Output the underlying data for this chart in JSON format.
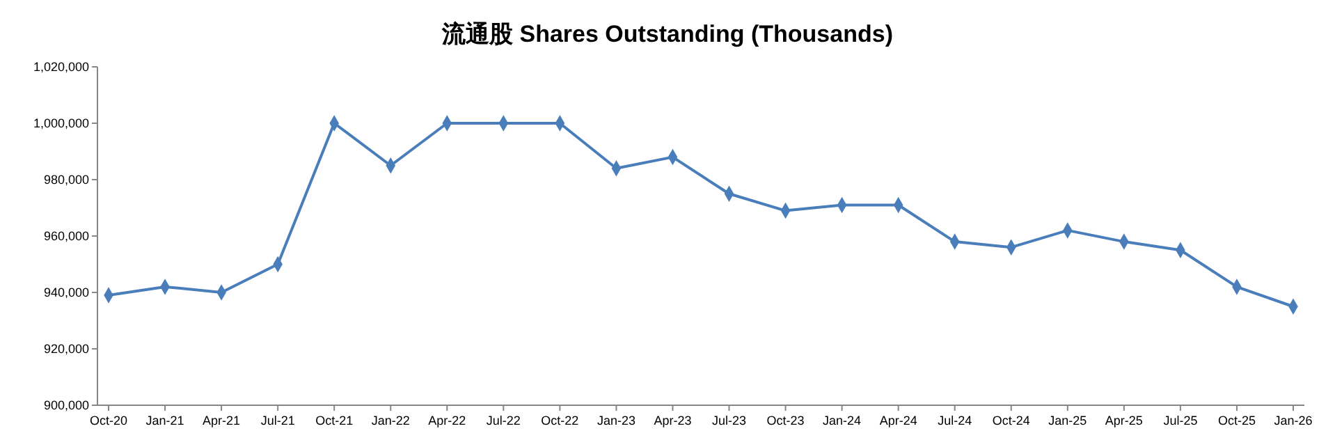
{
  "chart_data": {
    "type": "line",
    "title": "流通股 Shares Outstanding (Thousands)",
    "categories": [
      "Oct-20",
      "Jan-21",
      "Apr-21",
      "Jul-21",
      "Oct-21",
      "Jan-22",
      "Apr-22",
      "Jul-22",
      "Oct-22",
      "Jan-23",
      "Apr-23",
      "Jul-23",
      "Oct-23",
      "Jan-24",
      "Apr-24",
      "Jul-24",
      "Oct-24",
      "Jan-25",
      "Apr-25",
      "Jul-25",
      "Oct-25",
      "Jan-26"
    ],
    "series": [
      {
        "color": "#4a7ebb",
        "values": [
          939000,
          942000,
          940000,
          950000,
          1000000,
          985000,
          1000000,
          1000000,
          1000000,
          984000,
          988000,
          975000,
          969000,
          971000,
          971000,
          958000,
          956000,
          962000,
          958000,
          955000,
          942000,
          935000
        ]
      }
    ],
    "ylim": [
      900000,
      1020000
    ],
    "yticks": [
      {
        "value": 900000,
        "label": "900,000"
      },
      {
        "value": 920000,
        "label": "920,000"
      },
      {
        "value": 940000,
        "label": "940,000"
      },
      {
        "value": 960000,
        "label": "960,000"
      },
      {
        "value": 980000,
        "label": "980,000"
      },
      {
        "value": 1000000,
        "label": "1,000,000"
      },
      {
        "value": 1020000,
        "label": "1,020,000"
      }
    ],
    "grid": false,
    "marker": "diamond",
    "line_style": "solid"
  }
}
